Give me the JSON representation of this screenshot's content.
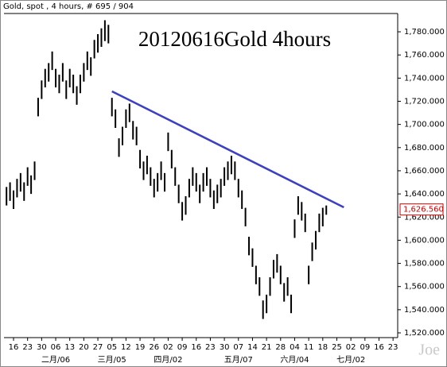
{
  "header": "Gold, spot , 4 hours, # 695 / 904",
  "watermark": "Joe",
  "chart_data": {
    "type": "ohlc",
    "title": "20120616Gold 4hours",
    "categories": [
      "16",
      "23",
      "30",
      "06",
      "13",
      "20",
      "27",
      "05",
      "12",
      "19",
      "26",
      "02",
      "09",
      "16",
      "23",
      "30",
      "07",
      "14",
      "21",
      "28",
      "04",
      "11",
      "18",
      "25",
      "02",
      "09",
      "16",
      "23"
    ],
    "month_labels": [
      null,
      null,
      null,
      "二月/06",
      null,
      null,
      null,
      "三月/05",
      null,
      null,
      null,
      "四月/02",
      null,
      null,
      null,
      null,
      "五月/07",
      null,
      null,
      null,
      "六月/04",
      null,
      null,
      null,
      "七月/02",
      null,
      null,
      null
    ],
    "xlim": [
      -0.68,
      27.33
    ],
    "x": [
      -0.5,
      -0.25,
      0,
      0.25,
      0.5,
      0.75,
      1,
      1.25,
      1.5,
      1.75,
      2,
      2.25,
      2.5,
      2.75,
      3,
      3.25,
      3.5,
      3.75,
      4,
      4.25,
      4.5,
      4.75,
      5,
      5.25,
      5.5,
      5.75,
      6,
      6.25,
      6.5,
      6.75,
      7,
      7.25,
      7.5,
      7.75,
      8,
      8.25,
      8.5,
      8.75,
      9,
      9.25,
      9.5,
      9.75,
      10,
      10.25,
      10.5,
      10.75,
      11,
      11.25,
      11.5,
      11.75,
      12,
      12.25,
      12.5,
      12.75,
      13,
      13.25,
      13.5,
      13.75,
      14,
      14.25,
      14.5,
      14.75,
      15,
      15.25,
      15.5,
      15.75,
      16,
      16.25,
      16.5,
      16.75,
      17,
      17.25,
      17.5,
      17.75,
      18,
      18.25,
      18.5,
      18.75,
      19,
      19.25,
      19.5,
      19.75,
      20,
      20.25,
      20.5,
      20.75,
      21,
      21.25,
      21.5,
      21.75,
      22,
      22.25
    ],
    "high": [
      1646,
      1650,
      1643,
      1653,
      1658,
      1650,
      1663,
      1656,
      1668,
      1723,
      1738,
      1748,
      1753,
      1763,
      1748,
      1743,
      1753,
      1738,
      1748,
      1743,
      1733,
      1743,
      1753,
      1763,
      1758,
      1773,
      1778,
      1783,
      1790,
      1786,
      1723,
      1713,
      1688,
      1698,
      1713,
      1718,
      1703,
      1698,
      1678,
      1668,
      1673,
      1663,
      1653,
      1658,
      1668,
      1658,
      1693,
      1678,
      1663,
      1648,
      1633,
      1638,
      1653,
      1663,
      1658,
      1648,
      1658,
      1663,
      1653,
      1643,
      1648,
      1653,
      1663,
      1668,
      1673,
      1668,
      1653,
      1643,
      1628,
      1603,
      1593,
      1578,
      1568,
      1548,
      1553,
      1568,
      1583,
      1588,
      1578,
      1563,
      1568,
      1553,
      1618,
      1638,
      1633,
      1623,
      1578,
      1598,
      1608,
      1623,
      1628,
      1630
    ],
    "low": [
      1630,
      1634,
      1627,
      1637,
      1642,
      1634,
      1647,
      1640,
      1652,
      1707,
      1722,
      1732,
      1737,
      1747,
      1732,
      1727,
      1737,
      1722,
      1732,
      1727,
      1717,
      1727,
      1737,
      1747,
      1742,
      1757,
      1762,
      1767,
      1772,
      1770,
      1707,
      1697,
      1672,
      1682,
      1697,
      1702,
      1687,
      1682,
      1662,
      1652,
      1657,
      1647,
      1637,
      1642,
      1652,
      1642,
      1677,
      1662,
      1647,
      1632,
      1617,
      1622,
      1637,
      1647,
      1642,
      1632,
      1642,
      1647,
      1637,
      1627,
      1632,
      1637,
      1647,
      1652,
      1657,
      1652,
      1637,
      1627,
      1612,
      1587,
      1577,
      1562,
      1552,
      1532,
      1537,
      1552,
      1567,
      1572,
      1562,
      1547,
      1552,
      1537,
      1602,
      1622,
      1617,
      1607,
      1562,
      1582,
      1592,
      1607,
      1612,
      1622
    ],
    "color": "#000000",
    "trendline": {
      "x": [
        7,
        23.5
      ],
      "y": [
        1728.6,
        1628.4
      ],
      "color": "#3b3fc4"
    },
    "last_price": {
      "value": 1626.56,
      "label": "1,626.560",
      "color": "#cc0000"
    },
    "ylim": [
      1515.9,
      1795.8
    ],
    "yticks": [
      {
        "value": 1520,
        "label": "1,520.000"
      },
      {
        "value": 1540,
        "label": "1,540.000"
      },
      {
        "value": 1560,
        "label": "1,560.000"
      },
      {
        "value": 1580,
        "label": "1,580.000"
      },
      {
        "value": 1600,
        "label": "1,600.000"
      },
      {
        "value": 1620,
        "label": "1,620.000"
      },
      {
        "value": 1640,
        "label": "1,640.000"
      },
      {
        "value": 1660,
        "label": "1,660.000"
      },
      {
        "value": 1680,
        "label": "1,680.000"
      },
      {
        "value": 1700,
        "label": "1,700.000"
      },
      {
        "value": 1720,
        "label": "1,720.000"
      },
      {
        "value": 1740,
        "label": "1,740.000"
      },
      {
        "value": 1760,
        "label": "1,760.000"
      },
      {
        "value": 1780,
        "label": "1,780.000"
      }
    ]
  }
}
